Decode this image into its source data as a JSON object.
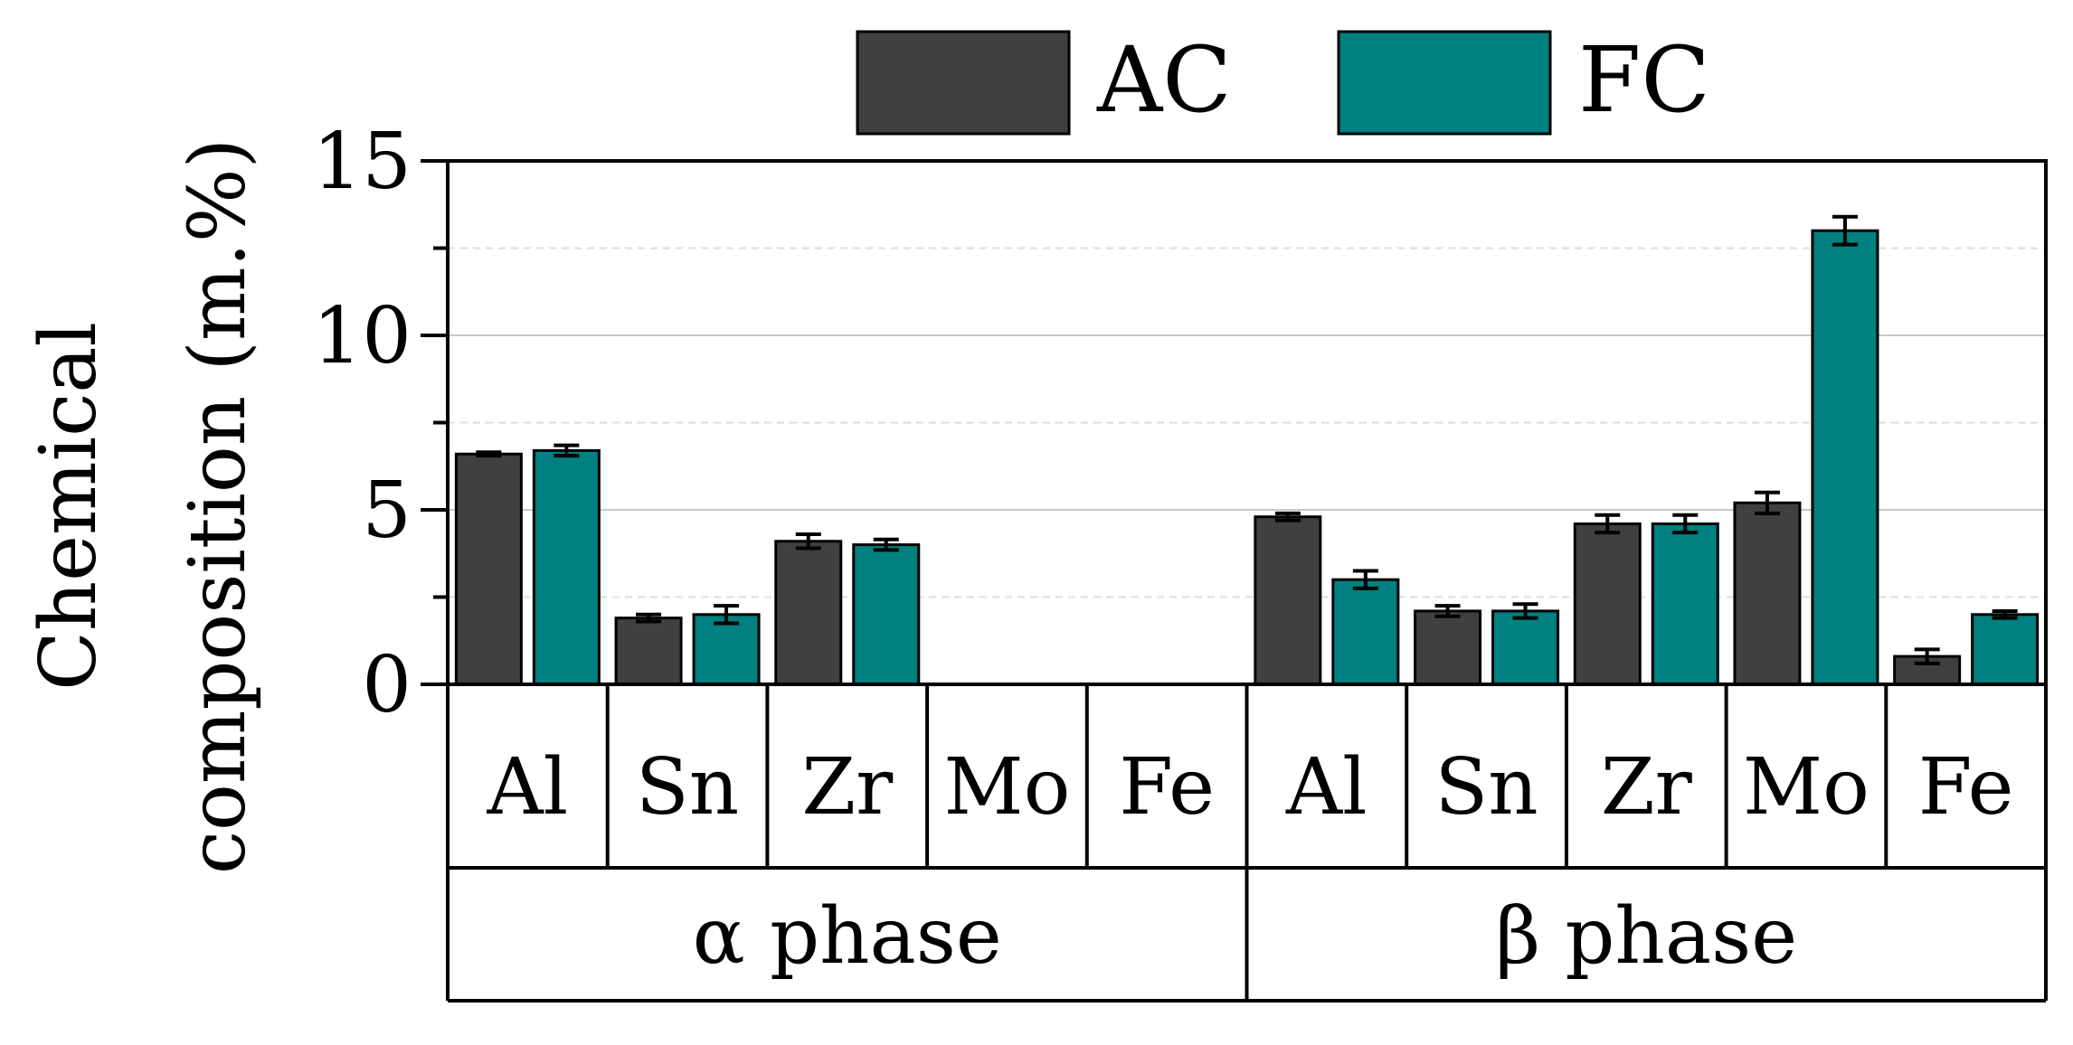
{
  "chart_data": {
    "type": "bar",
    "title": "",
    "ylabel_lines": [
      "Chemical",
      "composition (m.%)"
    ],
    "ylim": [
      0,
      15
    ],
    "yticks": [
      0,
      5,
      10,
      15
    ],
    "ytick_labels": [
      "0",
      "5",
      "10",
      "15"
    ],
    "grid": "horizontal",
    "legend_placement": "top",
    "categories": [
      "Al",
      "Sn",
      "Zr",
      "Mo",
      "Fe",
      "Al",
      "Sn",
      "Zr",
      "Mo",
      "Fe"
    ],
    "groups": [
      {
        "label": "α phase",
        "span": [
          0,
          4
        ]
      },
      {
        "label": "β phase",
        "span": [
          5,
          9
        ]
      }
    ],
    "series": [
      {
        "name": "AC",
        "color": "#404040",
        "values": [
          6.6,
          1.9,
          4.1,
          null,
          null,
          4.8,
          2.1,
          4.6,
          5.2,
          0.8
        ],
        "errors": [
          0.05,
          0.1,
          0.2,
          null,
          null,
          0.1,
          0.15,
          0.25,
          0.3,
          0.2
        ]
      },
      {
        "name": "FC",
        "color": "#008080",
        "values": [
          6.7,
          2.0,
          4.0,
          null,
          null,
          3.0,
          2.1,
          4.6,
          13.0,
          2.0
        ],
        "errors": [
          0.15,
          0.25,
          0.15,
          null,
          null,
          0.25,
          0.2,
          0.25,
          0.4,
          0.1
        ]
      }
    ]
  }
}
